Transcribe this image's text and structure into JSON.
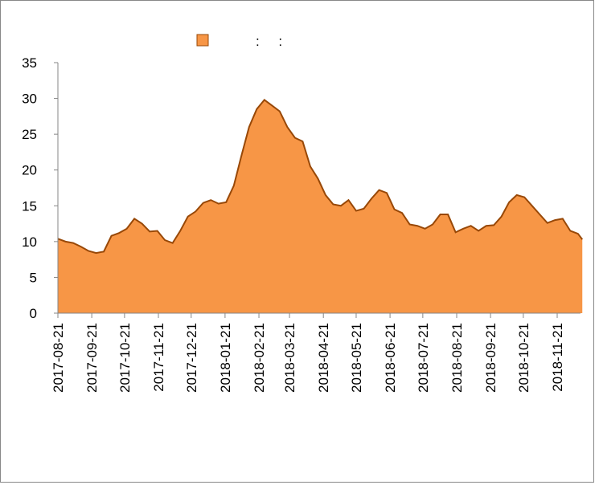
{
  "chart_data": {
    "type": "area",
    "x": [
      "2017-08-21",
      "2017-08-28",
      "2017-09-04",
      "2017-09-11",
      "2017-09-18",
      "2017-09-25",
      "2017-10-02",
      "2017-10-09",
      "2017-10-16",
      "2017-10-23",
      "2017-10-30",
      "2017-11-06",
      "2017-11-13",
      "2017-11-20",
      "2017-11-27",
      "2017-12-04",
      "2017-12-11",
      "2017-12-18",
      "2017-12-25",
      "2018-01-01",
      "2018-01-08",
      "2018-01-15",
      "2018-01-22",
      "2018-01-29",
      "2018-02-05",
      "2018-02-12",
      "2018-02-19",
      "2018-02-26",
      "2018-03-05",
      "2018-03-12",
      "2018-03-19",
      "2018-03-26",
      "2018-04-02",
      "2018-04-09",
      "2018-04-16",
      "2018-04-23",
      "2018-04-30",
      "2018-05-07",
      "2018-05-14",
      "2018-05-21",
      "2018-05-28",
      "2018-06-04",
      "2018-06-11",
      "2018-06-18",
      "2018-06-25",
      "2018-07-02",
      "2018-07-09",
      "2018-07-16",
      "2018-07-23",
      "2018-07-30",
      "2018-08-06",
      "2018-08-13",
      "2018-08-20",
      "2018-08-27",
      "2018-09-03",
      "2018-09-10",
      "2018-09-17",
      "2018-09-24",
      "2018-10-01",
      "2018-10-08",
      "2018-10-15",
      "2018-10-22",
      "2018-10-29",
      "2018-11-05",
      "2018-11-12",
      "2018-11-19",
      "2018-11-26",
      "2018-12-03",
      "2018-12-10",
      "2018-12-14"
    ],
    "series": [
      {
        "name": ":     :",
        "color": "#f79646",
        "line_color": "#984807",
        "values": [
          10.4,
          10.0,
          9.8,
          9.3,
          8.7,
          8.4,
          8.6,
          10.8,
          11.2,
          11.8,
          13.2,
          12.5,
          11.4,
          11.5,
          10.2,
          9.8,
          11.5,
          13.5,
          14.2,
          15.4,
          15.8,
          15.3,
          15.5,
          17.8,
          22.0,
          26.0,
          28.5,
          29.8,
          29.0,
          28.2,
          26.0,
          24.5,
          24.0,
          20.5,
          18.8,
          16.5,
          15.2,
          15.0,
          15.8,
          14.3,
          14.6,
          16.0,
          17.2,
          16.8,
          14.5,
          14.0,
          12.4,
          12.2,
          11.8,
          12.4,
          13.8,
          13.8,
          11.3,
          11.8,
          12.2,
          11.5,
          12.2,
          12.3,
          13.5,
          15.5,
          16.5,
          16.2,
          15.0,
          13.8,
          12.6,
          13.0,
          13.2,
          11.5,
          11.1,
          10.3
        ]
      }
    ],
    "xticks": [
      "2017-08-21",
      "2017-09-21",
      "2017-10-21",
      "2017-11-21",
      "2017-12-21",
      "2018-01-21",
      "2018-02-21",
      "2018-03-21",
      "2018-04-21",
      "2018-05-21",
      "2018-06-21",
      "2018-07-21",
      "2018-08-21",
      "2018-09-21",
      "2018-10-21",
      "2018-11-21"
    ],
    "ylim": [
      0,
      35
    ],
    "yticks": [
      0,
      5,
      10,
      15,
      20,
      25,
      30,
      35
    ]
  }
}
